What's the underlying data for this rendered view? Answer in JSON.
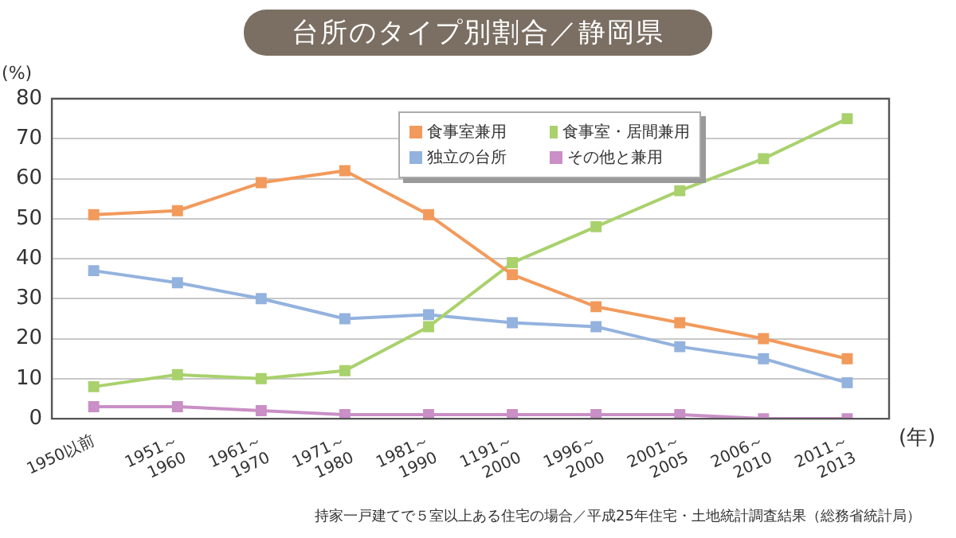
{
  "chart_data": {
    "type": "line",
    "title": "台所のタイプ別割合／静岡県",
    "ylabel": "(%)",
    "xlabel": "(年)",
    "categories": [
      "1950以前",
      "1951～1960",
      "1961～1970",
      "1971～1980",
      "1981～1990",
      "1191～2000",
      "1996～2000",
      "2001～2005",
      "2006～2010",
      "2011～2013"
    ],
    "series": [
      {
        "name": "食事室兼用",
        "color": "#f29a5c",
        "values": [
          51,
          52,
          59,
          62,
          51,
          36,
          28,
          24,
          20,
          15
        ]
      },
      {
        "name": "食事室・居間兼用",
        "color": "#a9d16c",
        "values": [
          8,
          11,
          10,
          12,
          23,
          39,
          48,
          57,
          65,
          75
        ]
      },
      {
        "name": "独立の台所",
        "color": "#93b2de",
        "values": [
          37,
          34,
          30,
          25,
          26,
          24,
          23,
          18,
          15,
          9
        ]
      },
      {
        "name": "その他と兼用",
        "color": "#c98fc6",
        "values": [
          3,
          3,
          2,
          1,
          1,
          1,
          1,
          1,
          0,
          0
        ]
      }
    ],
    "ylim": [
      0,
      80
    ],
    "yticks": [
      0,
      10,
      20,
      30,
      40,
      50,
      60,
      70,
      80
    ],
    "grid": "y",
    "legend": "top right",
    "marker": "square",
    "line_style": "solid",
    "annotations": [
      "持家一戸建てで５室以上ある住宅の場合／平成25年住宅・土地統計調査結果（総務省統計局）"
    ]
  }
}
